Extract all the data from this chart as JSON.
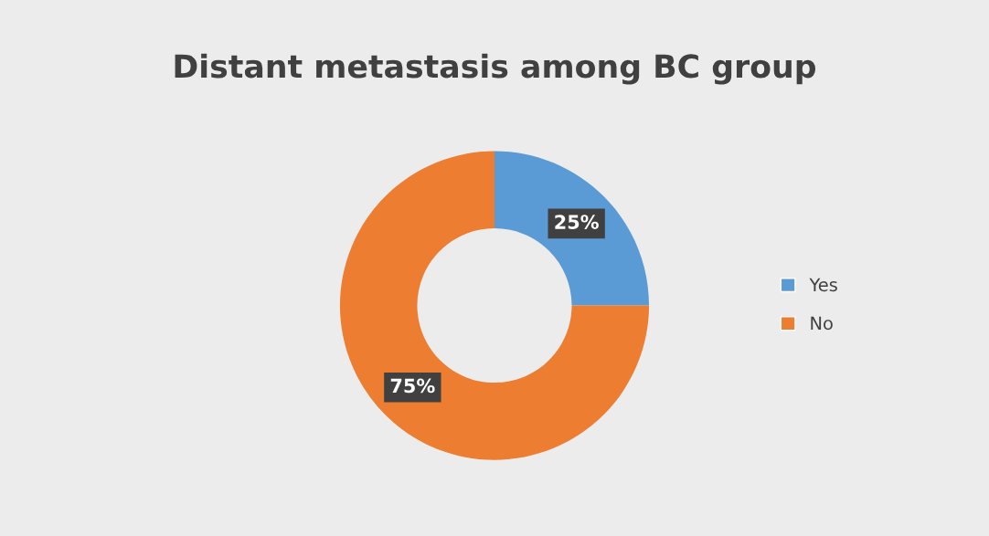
{
  "chart_data": {
    "type": "donut",
    "title": "Distant metastasis among BC group",
    "categories": [
      "Yes",
      "No"
    ],
    "values": [
      25,
      75
    ],
    "colors": [
      "#5b9bd5",
      "#ed7d31"
    ],
    "value_labels": [
      "25%",
      "75%"
    ],
    "legend": "right"
  }
}
